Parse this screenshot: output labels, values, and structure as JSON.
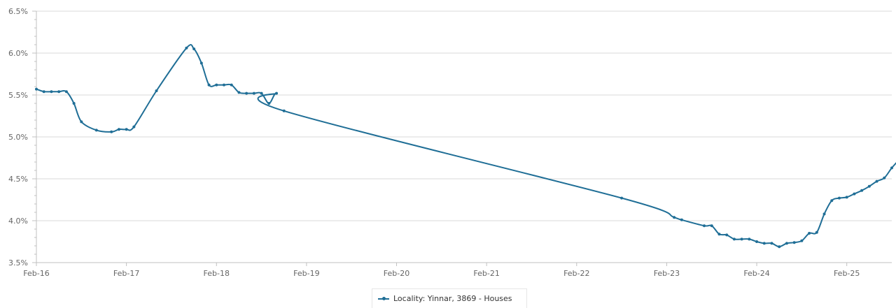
{
  "chart_data": {
    "type": "line",
    "title": "",
    "xlabel": "",
    "ylabel": "",
    "x_ticks": [
      "Feb-16",
      "Feb-17",
      "Feb-18",
      "Feb-19",
      "Feb-20",
      "Feb-21",
      "Feb-22",
      "Feb-23",
      "Feb-24",
      "Feb-25"
    ],
    "y_ticks": [
      "3.5%",
      "4.0%",
      "4.5%",
      "5.0%",
      "5.5%",
      "6.0%",
      "6.5%"
    ],
    "ylim": [
      3.5,
      6.5
    ],
    "xlim": [
      "2016-02",
      "2025-08"
    ],
    "grid": "horizontal",
    "legend_position": "bottom-center",
    "series": [
      {
        "name": "Locality: Yinnar, 3869 - Houses",
        "color": "#1f6e96",
        "points": [
          {
            "x": "2016-02",
            "y": 5.57
          },
          {
            "x": "2016-03",
            "y": 5.54
          },
          {
            "x": "2016-04",
            "y": 5.54
          },
          {
            "x": "2016-05",
            "y": 5.54
          },
          {
            "x": "2016-06",
            "y": 5.54
          },
          {
            "x": "2016-07",
            "y": 5.4
          },
          {
            "x": "2016-08",
            "y": 5.18
          },
          {
            "x": "2016-10",
            "y": 5.08
          },
          {
            "x": "2016-12",
            "y": 5.06
          },
          {
            "x": "2017-01",
            "y": 5.09
          },
          {
            "x": "2017-02",
            "y": 5.09
          },
          {
            "x": "2017-03",
            "y": 5.12
          },
          {
            "x": "2017-06",
            "y": 5.55
          },
          {
            "x": "2017-10",
            "y": 6.06
          },
          {
            "x": "2017-11",
            "y": 6.05
          },
          {
            "x": "2017-12",
            "y": 5.88
          },
          {
            "x": "2018-01",
            "y": 5.62
          },
          {
            "x": "2018-02",
            "y": 5.62
          },
          {
            "x": "2018-03",
            "y": 5.62
          },
          {
            "x": "2018-04",
            "y": 5.62
          },
          {
            "x": "2018-05",
            "y": 5.53
          },
          {
            "x": "2018-06",
            "y": 5.52
          },
          {
            "x": "2018-07",
            "y": 5.52
          },
          {
            "x": "2018-08",
            "y": 5.52
          },
          {
            "x": "2018-09",
            "y": 5.4
          },
          {
            "x": "2018-10",
            "y": 5.52
          },
          {
            "x": "2018-11",
            "y": 5.31
          },
          {
            "x": "2022-08",
            "y": 4.27
          },
          {
            "x": "2023-03",
            "y": 4.04
          },
          {
            "x": "2023-04",
            "y": 4.01
          },
          {
            "x": "2023-07",
            "y": 3.94
          },
          {
            "x": "2023-08",
            "y": 3.94
          },
          {
            "x": "2023-09",
            "y": 3.84
          },
          {
            "x": "2023-10",
            "y": 3.83
          },
          {
            "x": "2023-11",
            "y": 3.78
          },
          {
            "x": "2023-12",
            "y": 3.78
          },
          {
            "x": "2024-01",
            "y": 3.78
          },
          {
            "x": "2024-02",
            "y": 3.75
          },
          {
            "x": "2024-03",
            "y": 3.73
          },
          {
            "x": "2024-04",
            "y": 3.73
          },
          {
            "x": "2024-05",
            "y": 3.69
          },
          {
            "x": "2024-06",
            "y": 3.73
          },
          {
            "x": "2024-07",
            "y": 3.74
          },
          {
            "x": "2024-08",
            "y": 3.76
          },
          {
            "x": "2024-09",
            "y": 3.85
          },
          {
            "x": "2024-10",
            "y": 3.86
          },
          {
            "x": "2024-11",
            "y": 4.08
          },
          {
            "x": "2024-12",
            "y": 4.24
          },
          {
            "x": "2025-01",
            "y": 4.27
          },
          {
            "x": "2025-02",
            "y": 4.28
          },
          {
            "x": "2025-03",
            "y": 4.32
          },
          {
            "x": "2025-04",
            "y": 4.36
          },
          {
            "x": "2025-05",
            "y": 4.41
          },
          {
            "x": "2025-06",
            "y": 4.47
          },
          {
            "x": "2025-07",
            "y": 4.51
          },
          {
            "x": "2025-08",
            "y": 4.63
          },
          {
            "x": "2025-09",
            "y": 4.73
          }
        ]
      }
    ]
  },
  "legend": {
    "label": "Locality: Yinnar, 3869 - Houses"
  }
}
